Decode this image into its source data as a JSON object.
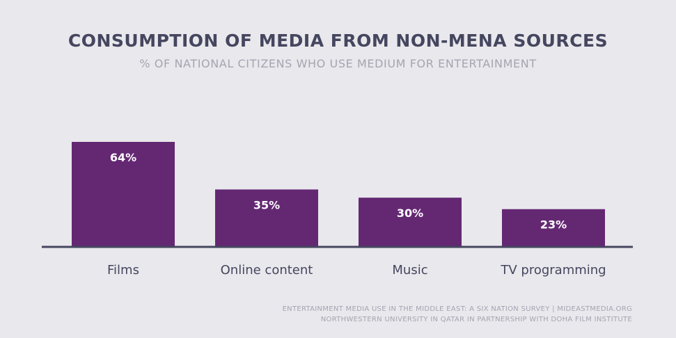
{
  "header": {
    "title": "CONSUMPTION OF MEDIA FROM NON-MENA SOURCES",
    "subtitle": "% OF NATIONAL CITIZENS WHO USE MEDIUM FOR ENTERTAINMENT"
  },
  "chart_data": {
    "type": "bar",
    "categories": [
      "Films",
      "Online content",
      "Music",
      "TV programming"
    ],
    "values": [
      64,
      35,
      30,
      23
    ],
    "value_labels": [
      "64%",
      "35%",
      "30%",
      "23%"
    ],
    "title": "CONSUMPTION OF MEDIA FROM NON-MENA SOURCES",
    "subtitle": "% OF NATIONAL CITIZENS WHO USE MEDIUM FOR ENTERTAINMENT",
    "xlabel": "",
    "ylabel": "",
    "ylim": [
      0,
      100
    ],
    "grid": false,
    "legend": "none"
  },
  "footer": {
    "source_line1": "ENTERTAINMENT MEDIA USE IN THE MIDDLE EAST: A SIX NATION SURVEY | MIDEASTMEDIA.ORG",
    "source_line2": "NORTHWESTERN UNIVERSITY IN QATAR IN PARTNERSHIP WITH DOHA FILM INSTITUTE"
  },
  "colors": {
    "bar": "#642873",
    "axis": "#45465f",
    "title": "#45465f",
    "subtitle": "#a5a4b2",
    "value_label": "#ffffff",
    "category_label": "#45465f",
    "background": "#e9e8ec"
  }
}
